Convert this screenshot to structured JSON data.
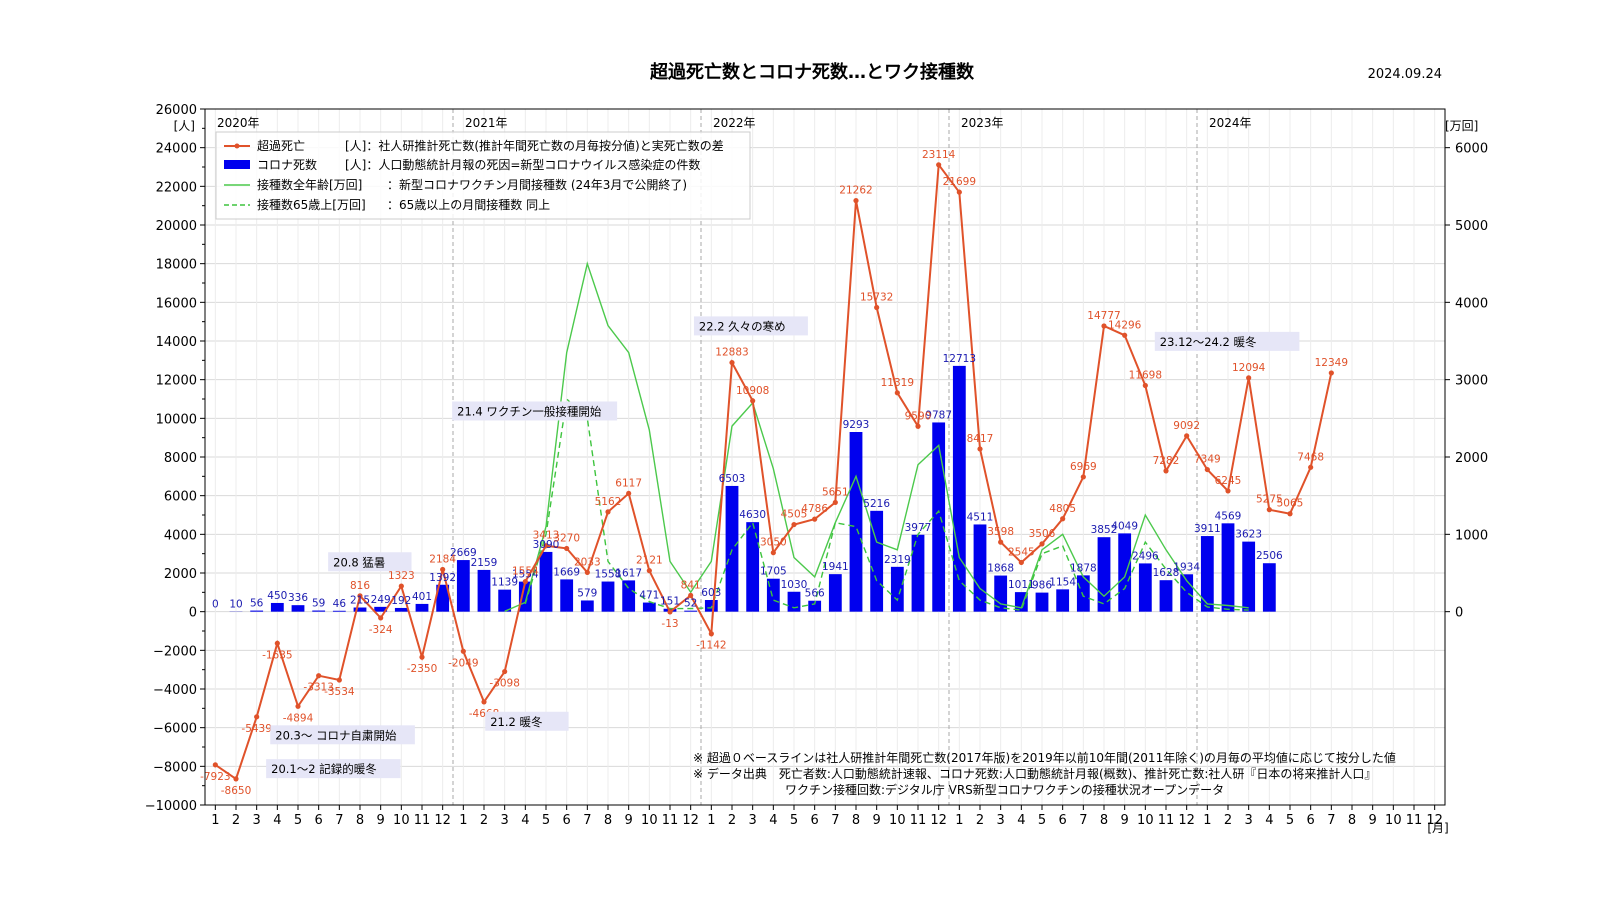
{
  "header": {
    "title": "超過死亡数とコロナ死数…とワク接種数",
    "date": "2024.09.24"
  },
  "axes": {
    "left_unit": "[人]",
    "right_unit": "[万回]",
    "x_unit": "[月]",
    "years": [
      "2020年",
      "2021年",
      "2022年",
      "2023年",
      "2024年"
    ]
  },
  "legend": [
    {
      "label": "超過死亡",
      "desc": "[人]：社人研推計死亡数(推計年間死亡数の月毎按分値)と実死亡数の差"
    },
    {
      "label": "コロナ死数",
      "desc": "[人]：人口動態統計月報の死因=新型コロナウイルス感染症の件数"
    },
    {
      "label": "接種数全年齢[万回]",
      "desc": "：新型コロナワクチン月間接種数 (24年3月で公開終了)"
    },
    {
      "label": "接種数65歳上[万回]",
      "desc": "：65歳以上の月間接種数 同上"
    }
  ],
  "annotations": [
    {
      "text": "20.1〜2 記録的暖冬"
    },
    {
      "text": "20.3〜 コロナ自粛開始"
    },
    {
      "text": "20.8 猛暑"
    },
    {
      "text": "21.2 暖冬"
    },
    {
      "text": "21.4 ワクチン一般接種開始"
    },
    {
      "text": "22.2 久々の寒め"
    },
    {
      "text": "23.12〜24.2 暖冬"
    }
  ],
  "footnotes": [
    "※ 超過０ベースラインは社人研推計年間死亡数(2017年版)を2019年以前10年間(2011年除く)の月毎の平均値に応じて按分した値",
    "※ データ出典　死亡者数:人口動態統計速報、コロナ死数:人口動態統計月報(概数)、推計死亡数:社人研『日本の将来推計人口』",
    "ワクチン接種回数:デジタル庁 VRS新型コロナワクチンの接種状況オープンデータ"
  ],
  "colors": {
    "excess": "#e0522a",
    "covid": "#0000ee",
    "vax_all": "#4cc94c",
    "vax_65": "#3ec43e",
    "annotation_bg": "#e6e6f7",
    "grid": "#d9d9d9",
    "year_line": "#aaaaaa"
  },
  "chart_data": {
    "type": "bar+line",
    "title": "超過死亡数とコロナ死数…とワク接種数",
    "x_categories": [
      "2020-01",
      "2020-02",
      "2020-03",
      "2020-04",
      "2020-05",
      "2020-06",
      "2020-07",
      "2020-08",
      "2020-09",
      "2020-10",
      "2020-11",
      "2020-12",
      "2021-01",
      "2021-02",
      "2021-03",
      "2021-04",
      "2021-05",
      "2021-06",
      "2021-07",
      "2021-08",
      "2021-09",
      "2021-10",
      "2021-11",
      "2021-12",
      "2022-01",
      "2022-02",
      "2022-03",
      "2022-04",
      "2022-05",
      "2022-06",
      "2022-07",
      "2022-08",
      "2022-09",
      "2022-10",
      "2022-11",
      "2022-12",
      "2023-01",
      "2023-02",
      "2023-03",
      "2023-04",
      "2023-05",
      "2023-06",
      "2023-07",
      "2023-08",
      "2023-09",
      "2023-10",
      "2023-11",
      "2023-12",
      "2024-01",
      "2024-02",
      "2024-03",
      "2024-04",
      "2024-05",
      "2024-06",
      "2024-07",
      "2024-08",
      "2024-09",
      "2024-10",
      "2024-11",
      "2024-12"
    ],
    "x_tick_labels": [
      "1",
      "2",
      "3",
      "4",
      "5",
      "6",
      "7",
      "8",
      "9",
      "10",
      "11",
      "12"
    ],
    "left_axis": {
      "unit": "[人]",
      "ylim": [
        -10000,
        26000
      ],
      "ticks": [
        -10000,
        -8000,
        -6000,
        -4000,
        -2000,
        0,
        2000,
        4000,
        6000,
        8000,
        10000,
        12000,
        14000,
        16000,
        18000,
        20000,
        22000,
        24000,
        26000
      ]
    },
    "right_axis": {
      "unit": "[万回]",
      "ticks": [
        0,
        1000,
        2000,
        3000,
        4000,
        5000,
        6000
      ]
    },
    "series": [
      {
        "name": "超過死亡",
        "axis": "left",
        "style": "line-marker",
        "values": [
          -7923,
          -8650,
          -5439,
          -1635,
          -4894,
          -3313,
          -3534,
          816,
          -324,
          1323,
          -2350,
          2184,
          -2049,
          -4668,
          -3098,
          1554,
          3413,
          3270,
          2033,
          5162,
          6117,
          2121,
          -13,
          841,
          -1142,
          12883,
          10908,
          3050,
          4505,
          4786,
          5651,
          21262,
          15732,
          11319,
          9590,
          23114,
          21699,
          8417,
          3598,
          2545,
          3506,
          4805,
          6969,
          14777,
          14296,
          11698,
          7282,
          9092,
          7349,
          6245,
          12094,
          5275,
          5065,
          7468,
          12349
        ]
      },
      {
        "name": "コロナ死数",
        "axis": "left",
        "style": "bar",
        "values": [
          0,
          10,
          56,
          450,
          336,
          59,
          46,
          215,
          249,
          192,
          401,
          1392,
          2669,
          2159,
          1139,
          1554,
          3090,
          1669,
          579,
          1558,
          1617,
          471,
          151,
          52,
          603,
          6503,
          4630,
          1705,
          1030,
          566,
          1941,
          9293,
          5216,
          2319,
          3977,
          9787,
          12713,
          4511,
          1868,
          1011,
          986,
          1154,
          1878,
          3852,
          4049,
          2496,
          1628,
          1934,
          3911,
          4569,
          3623,
          2506
        ]
      },
      {
        "name": "接種数全年齢",
        "axis": "right",
        "style": "line",
        "values": [
          null,
          null,
          null,
          null,
          null,
          null,
          null,
          null,
          null,
          null,
          null,
          null,
          null,
          null,
          5,
          120,
          1100,
          3350,
          4500,
          3700,
          3350,
          2350,
          650,
          250,
          650,
          2400,
          2700,
          1850,
          700,
          450,
          1150,
          1750,
          900,
          800,
          1900,
          2150,
          700,
          300,
          100,
          50,
          800,
          1000,
          450,
          200,
          450,
          1250,
          800,
          400,
          100,
          80,
          50
        ]
      },
      {
        "name": "接種数65歳上",
        "axis": "right",
        "style": "dashed",
        "values": [
          null,
          null,
          null,
          null,
          null,
          null,
          null,
          null,
          null,
          null,
          null,
          null,
          null,
          null,
          null,
          100,
          1000,
          2750,
          2500,
          650,
          300,
          130,
          40,
          40,
          50,
          800,
          1150,
          150,
          50,
          100,
          1150,
          1100,
          400,
          150,
          1000,
          1300,
          400,
          150,
          50,
          20,
          750,
          850,
          200,
          100,
          300,
          900,
          550,
          250,
          60,
          30,
          20
        ]
      }
    ]
  }
}
